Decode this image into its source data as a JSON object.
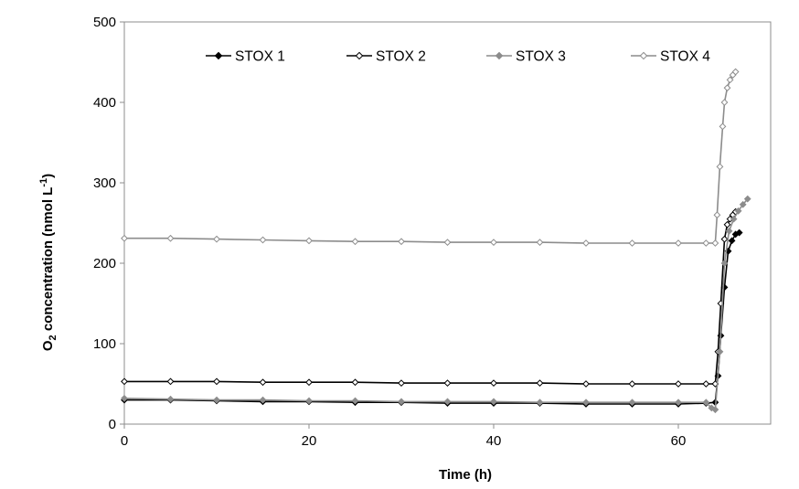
{
  "chart_data": {
    "type": "line",
    "xlabel": "Time (h)",
    "ylabel": {
      "main": "O",
      "sub": "2",
      "rest": " concentration (nmol L",
      "sup": "-1",
      "end": ")"
    },
    "xlim": [
      0,
      70
    ],
    "ylim": [
      0,
      500
    ],
    "x_ticks": [
      0,
      20,
      40,
      60
    ],
    "y_ticks": [
      0,
      100,
      200,
      300,
      400,
      500
    ],
    "grid": false,
    "legend_position": "top",
    "series": [
      {
        "name": "STOX 1",
        "color": "#000000",
        "marker": "filled-diamond",
        "x": [
          0,
          5,
          10,
          15,
          20,
          25,
          30,
          35,
          40,
          45,
          50,
          55,
          60,
          63,
          64,
          64.3,
          64.6,
          65,
          65.4,
          65.8,
          66.2,
          66.6
        ],
        "y": [
          30,
          30,
          29,
          28,
          28,
          27,
          27,
          26,
          26,
          26,
          25,
          25,
          25,
          26,
          27,
          60,
          110,
          170,
          215,
          228,
          236,
          238
        ]
      },
      {
        "name": "STOX 2",
        "color": "#000000",
        "marker": "open-diamond",
        "x": [
          0,
          5,
          10,
          15,
          20,
          25,
          30,
          35,
          40,
          45,
          50,
          55,
          60,
          63,
          64,
          64.3,
          64.6,
          65,
          65.3,
          65.6,
          65.9,
          66.2
        ],
        "y": [
          53,
          53,
          53,
          52,
          52,
          52,
          51,
          51,
          51,
          51,
          50,
          50,
          50,
          50,
          50,
          90,
          150,
          230,
          248,
          255,
          260,
          264
        ]
      },
      {
        "name": "STOX 3",
        "color": "#8c8c8c",
        "marker": "filled-diamond",
        "x": [
          0,
          5,
          10,
          15,
          20,
          25,
          30,
          35,
          40,
          45,
          50,
          55,
          60,
          63,
          63.6,
          64,
          64.5,
          65,
          65.5,
          66,
          66.5,
          67,
          67.5
        ],
        "y": [
          32,
          31,
          30,
          30,
          29,
          29,
          28,
          28,
          28,
          27,
          27,
          27,
          27,
          27,
          20,
          18,
          90,
          200,
          240,
          255,
          265,
          273,
          280
        ]
      },
      {
        "name": "STOX 4",
        "color": "#8c8c8c",
        "marker": "open-diamond",
        "x": [
          0,
          5,
          10,
          15,
          20,
          25,
          30,
          35,
          40,
          45,
          50,
          55,
          60,
          63,
          64,
          64.2,
          64.5,
          64.8,
          65,
          65.3,
          65.6,
          65.9,
          66.2
        ],
        "y": [
          231,
          231,
          230,
          229,
          228,
          227,
          227,
          226,
          226,
          226,
          225,
          225,
          225,
          225,
          225,
          260,
          320,
          370,
          400,
          418,
          428,
          434,
          438
        ]
      }
    ]
  }
}
